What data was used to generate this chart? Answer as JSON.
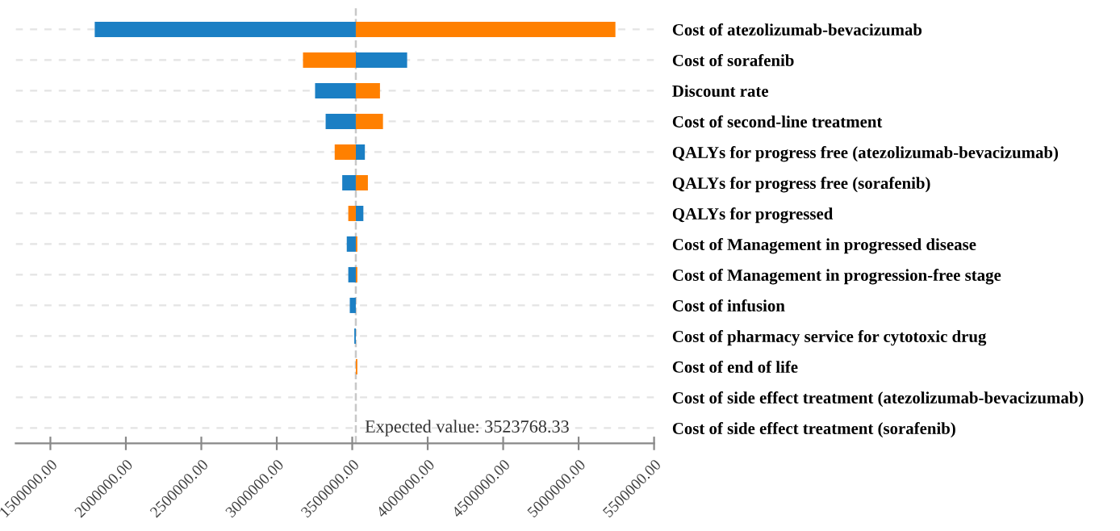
{
  "chart_data": {
    "type": "bar",
    "orientation": "horizontal",
    "categories": [
      "Cost of atezolizumab-bevacizumab",
      "Cost of sorafenib",
      "Discount rate",
      "Cost of second-line treatment",
      "QALYs for progress free (atezolizumab-bevacizumab)",
      "QALYs for progress free (sorafenib)",
      "QALYs for progressed",
      "Cost of Management in progressed disease",
      "Cost of Management in progression-free stage",
      "Cost of infusion",
      "Cost of pharmacy service for cytotoxic drug",
      "Cost of end of life",
      "Cost of side effect treatment (atezolizumab-bevacizumab)",
      "Cost of side effect treatment (sorafenib)"
    ],
    "series": [
      {
        "color": "#1b7fc4",
        "base": [
          3523768.33,
          3523768.33,
          3523768.33,
          3523768.33,
          3523768.33,
          3523768.33,
          3523768.33,
          3523768.33,
          3523768.33,
          3523768.33,
          3523768.33,
          null,
          null,
          null
        ],
        "values": [
          -1730000,
          340000,
          -270000,
          -200000,
          60000,
          -90000,
          50000,
          -60000,
          -50000,
          -40000,
          -10000,
          null,
          null,
          null
        ]
      },
      {
        "color": "#ff8000",
        "base": [
          3523768.33,
          3523768.33,
          3523768.33,
          3523768.33,
          3523768.33,
          3523768.33,
          3523768.33,
          3523768.33,
          3523768.33,
          null,
          null,
          3523768.33,
          null,
          null
        ],
        "values": [
          1720000,
          -350000,
          160000,
          180000,
          -140000,
          80000,
          -50000,
          10000,
          10000,
          null,
          null,
          10000,
          null,
          null
        ]
      }
    ],
    "xlim": [
      1270000,
      5500000
    ],
    "xticks": [
      {
        "value": 1500000,
        "label": "1500000.00"
      },
      {
        "value": 2000000,
        "label": "2000000.00"
      },
      {
        "value": 2500000,
        "label": "2500000.00"
      },
      {
        "value": 3000000,
        "label": "3000000.00"
      },
      {
        "value": 3500000,
        "label": "3500000.00"
      },
      {
        "value": 4000000,
        "label": "4000000.00"
      },
      {
        "value": 4500000,
        "label": "4500000.00"
      },
      {
        "value": 5000000,
        "label": "5000000.00"
      },
      {
        "value": 5500000,
        "label": "5500000.00"
      }
    ],
    "ref_lines": [
      {
        "axis": "x",
        "value": 3523768.33,
        "label": "Expected value: 3523768.33",
        "color": "#c8c8c8",
        "line_style": "dashed"
      }
    ],
    "grid": "y",
    "legend": false
  }
}
